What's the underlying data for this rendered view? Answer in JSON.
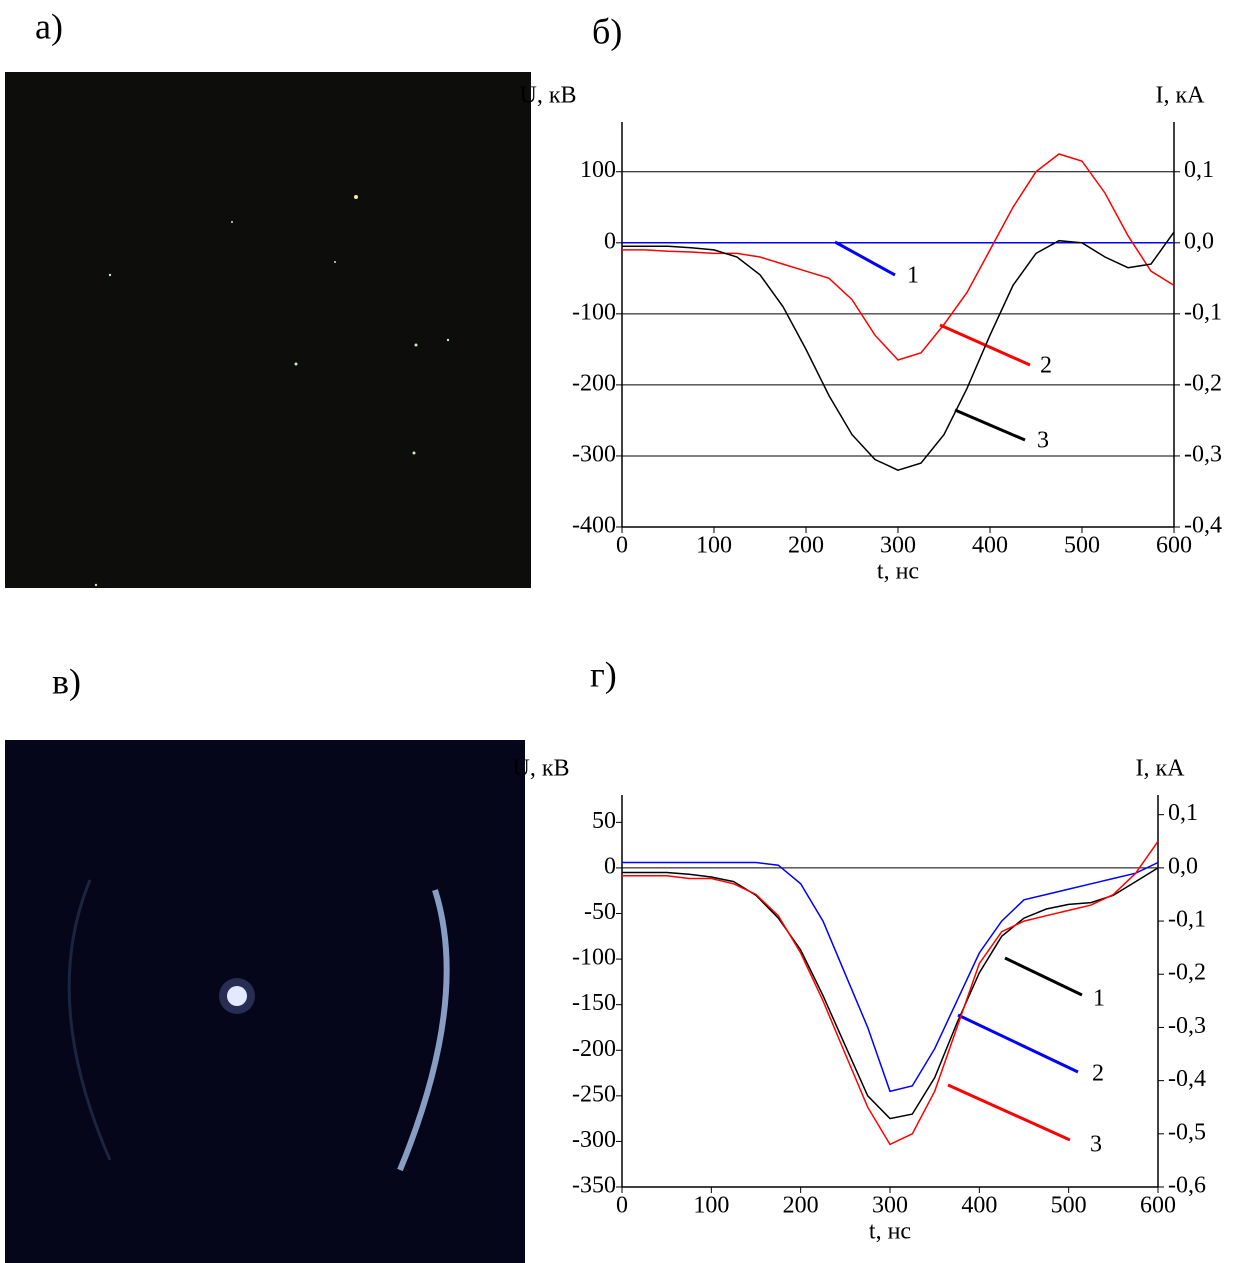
{
  "panel_labels": [
    "а)",
    "б)",
    "в)",
    "г)"
  ],
  "chart_data": [
    {
      "type": "line",
      "x_label": "t, нс",
      "y_label": "U, кВ",
      "y2_label": "I, кА",
      "x": [
        0,
        25,
        50,
        75,
        100,
        125,
        150,
        175,
        200,
        225,
        250,
        275,
        300,
        325,
        350,
        375,
        400,
        425,
        450,
        475,
        500,
        525,
        550,
        575,
        600
      ],
      "xlim": [
        0,
        600
      ],
      "xticks": [
        0,
        100,
        200,
        300,
        400,
        500,
        600
      ],
      "ylim": [
        -400,
        170
      ],
      "yticks": [
        -400,
        -300,
        -200,
        -100,
        0,
        100
      ],
      "y2lim": [
        -0.4,
        0.17
      ],
      "y2ticks": [
        {
          "value": -0.4,
          "label": "-0,4"
        },
        {
          "value": -0.3,
          "label": "-0,3"
        },
        {
          "value": -0.2,
          "label": "-0,2"
        },
        {
          "value": -0.1,
          "label": "-0,1"
        },
        {
          "value": 0,
          "label": "0,0"
        },
        {
          "value": 0.1,
          "label": "0,1"
        }
      ],
      "grid": true,
      "series": [
        {
          "name": "1",
          "color": "#0000ff",
          "axis": "y2",
          "values": [
            0,
            0,
            0,
            0,
            0,
            0,
            0,
            0,
            0,
            0,
            0,
            0,
            0,
            0,
            0,
            0,
            0,
            0,
            0,
            0,
            0,
            0,
            0,
            0,
            0
          ]
        },
        {
          "name": "2",
          "color": "#ff0000",
          "axis": "y2",
          "values": [
            -0.01,
            -0.01,
            -0.012,
            -0.013,
            -0.015,
            -0.015,
            -0.02,
            -0.03,
            -0.04,
            -0.05,
            -0.08,
            -0.13,
            -0.165,
            -0.155,
            -0.115,
            -0.07,
            -0.01,
            0.05,
            0.1,
            0.125,
            0.115,
            0.07,
            0.01,
            -0.04,
            -0.06
          ]
        },
        {
          "name": "3",
          "color": "#000000",
          "values": [
            -5,
            -5,
            -5,
            -7,
            -10,
            -20,
            -45,
            -90,
            -150,
            -215,
            -270,
            -305,
            -320,
            -310,
            -270,
            -205,
            -130,
            -60,
            -15,
            3,
            0,
            -20,
            -35,
            -30,
            15
          ]
        }
      ]
    },
    {
      "type": "line",
      "x_label": "t, нс",
      "y_label": "U, кВ",
      "y2_label": "I, кА",
      "x": [
        0,
        25,
        50,
        75,
        100,
        125,
        150,
        175,
        200,
        225,
        250,
        275,
        300,
        325,
        350,
        375,
        400,
        425,
        450,
        475,
        500,
        525,
        550,
        575,
        600
      ],
      "xlim": [
        0,
        600
      ],
      "xticks": [
        0,
        100,
        200,
        300,
        400,
        500,
        600
      ],
      "ylim": [
        -350,
        80
      ],
      "yticks": [
        -350,
        -300,
        -250,
        -200,
        -150,
        -100,
        -50,
        0,
        50
      ],
      "y2lim": [
        -0.6,
        0.137
      ],
      "y2ticks": [
        {
          "value": -0.6,
          "label": "-0,6"
        },
        {
          "value": -0.5,
          "label": "-0,5"
        },
        {
          "value": -0.4,
          "label": "-0,4"
        },
        {
          "value": -0.3,
          "label": "-0,3"
        },
        {
          "value": -0.2,
          "label": "-0,2"
        },
        {
          "value": -0.1,
          "label": "-0,1"
        },
        {
          "value": 0,
          "label": "0,0"
        },
        {
          "value": 0.1,
          "label": "0,1"
        }
      ],
      "grid": false,
      "series": [
        {
          "name": "1",
          "color": "#000000",
          "values": [
            -5,
            -5,
            -5,
            -7,
            -10,
            -15,
            -30,
            -55,
            -90,
            -140,
            -195,
            -250,
            -275,
            -270,
            -230,
            -170,
            -115,
            -75,
            -55,
            -45,
            -40,
            -38,
            -30,
            -15,
            0
          ]
        },
        {
          "name": "2",
          "color": "#0000ff",
          "axis": "y2",
          "values": [
            0.01,
            0.01,
            0.01,
            0.01,
            0.01,
            0.01,
            0.01,
            0.005,
            -0.03,
            -0.1,
            -0.2,
            -0.3,
            -0.42,
            -0.41,
            -0.34,
            -0.25,
            -0.16,
            -0.1,
            -0.06,
            -0.05,
            -0.04,
            -0.03,
            -0.02,
            -0.01,
            0.01
          ]
        },
        {
          "name": "3",
          "color": "#ff0000",
          "axis": "y2",
          "values": [
            -0.015,
            -0.015,
            -0.015,
            -0.02,
            -0.02,
            -0.03,
            -0.05,
            -0.09,
            -0.16,
            -0.25,
            -0.35,
            -0.45,
            -0.52,
            -0.5,
            -0.42,
            -0.3,
            -0.18,
            -0.12,
            -0.1,
            -0.09,
            -0.08,
            -0.07,
            -0.05,
            -0.01,
            0.05
          ]
        }
      ]
    }
  ]
}
